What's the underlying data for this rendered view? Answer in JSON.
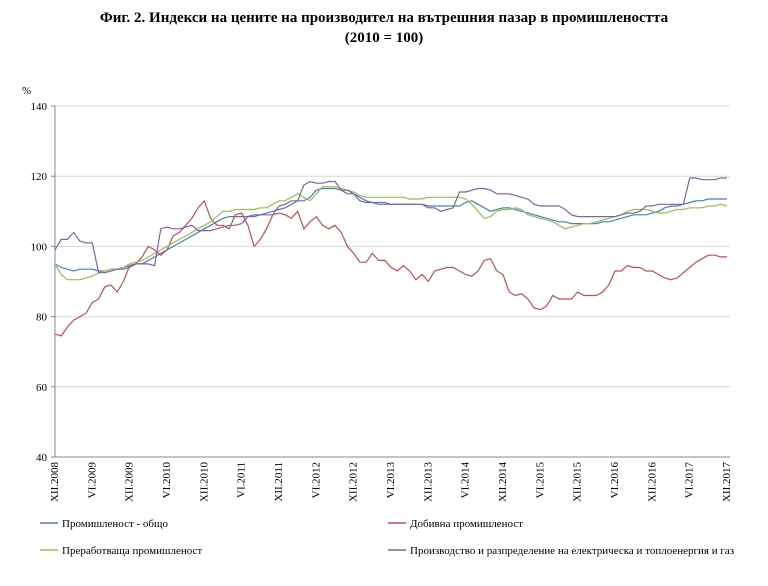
{
  "chart_data": {
    "type": "line",
    "title": "Фиг. 2. Индекси на цените на производител на вътрешния пазар в промишлеността",
    "subtitle": "(2010 = 100)",
    "y_label": "%",
    "categories": [
      "XII.2008",
      null,
      null,
      null,
      null,
      null,
      "VI.2009",
      null,
      null,
      null,
      null,
      null,
      "XII.2009",
      null,
      null,
      null,
      null,
      null,
      "VI.2010",
      null,
      null,
      null,
      null,
      null,
      "XII.2010",
      null,
      null,
      null,
      null,
      null,
      "VI.2011",
      null,
      null,
      null,
      null,
      null,
      "XII.2011",
      null,
      null,
      null,
      null,
      null,
      "VI.2012",
      null,
      null,
      null,
      null,
      null,
      "XII.2012",
      null,
      null,
      null,
      null,
      null,
      "VI.2013",
      null,
      null,
      null,
      null,
      null,
      "XII.2013",
      null,
      null,
      null,
      null,
      null,
      "VI.2014",
      null,
      null,
      null,
      null,
      null,
      "XII.2014",
      null,
      null,
      null,
      null,
      null,
      "VI.2015",
      null,
      null,
      null,
      null,
      null,
      "XII.2015",
      null,
      null,
      null,
      null,
      null,
      "VI.2016",
      null,
      null,
      null,
      null,
      null,
      "XII.2016",
      null,
      null,
      null,
      null,
      null,
      "VI.2017",
      null,
      null,
      null,
      null,
      null,
      "XII.2017"
    ],
    "series": [
      {
        "name": "Промишленост - общо",
        "color": "#4a7ebb",
        "values": [
          95,
          94,
          93.5,
          93,
          93.5,
          93.5,
          93.5,
          93,
          93,
          93.5,
          93.5,
          94,
          94.5,
          95,
          95,
          96,
          97,
          98,
          99,
          100,
          101,
          102,
          103,
          104,
          105,
          106,
          107,
          108,
          108.5,
          108.5,
          108.5,
          108.5,
          109,
          109,
          109.5,
          110,
          110.5,
          111,
          112,
          113,
          113,
          114,
          116,
          116.5,
          116.5,
          116.5,
          116,
          115,
          115,
          114,
          113,
          112.5,
          112.5,
          112.5,
          112,
          112,
          112,
          112,
          112,
          112,
          111.5,
          111.5,
          111.5,
          111.5,
          111.5,
          111.5,
          112.5,
          113,
          112,
          111,
          110,
          110.5,
          111,
          111,
          110.5,
          110,
          109.5,
          109,
          108.5,
          108,
          107.5,
          107,
          107,
          106.5,
          106.5,
          106.5,
          106.5,
          106.5,
          107,
          107,
          107.5,
          108,
          108.5,
          109,
          109,
          109,
          109.5,
          110,
          111,
          111.5,
          111.5,
          112,
          112.5,
          113,
          113,
          113.5,
          113.5,
          113.5,
          113.5
        ]
      },
      {
        "name": "Добивна промишленост",
        "color": "#c0504d",
        "values": [
          75,
          74.5,
          77,
          79,
          80,
          81,
          84,
          85,
          88.5,
          89,
          87,
          90,
          94.5,
          95,
          97,
          100,
          99,
          97.5,
          99,
          103,
          104,
          106,
          108,
          111,
          113,
          108,
          106,
          106,
          105,
          109,
          109.5,
          106,
          100,
          102,
          105,
          109,
          109.5,
          109,
          108,
          110,
          105,
          107,
          108.5,
          106,
          105,
          106,
          104,
          100,
          98,
          95.5,
          95.5,
          98,
          96,
          96,
          94,
          93,
          94.5,
          93,
          90.5,
          92,
          90,
          93,
          93.5,
          94,
          94,
          93,
          92,
          91.5,
          93,
          96,
          96.5,
          93,
          92,
          87,
          86,
          86.5,
          85,
          82.5,
          82,
          83,
          86,
          85,
          85,
          85,
          87,
          86,
          86,
          86,
          87,
          89,
          93,
          93,
          94.5,
          94,
          94,
          93,
          93,
          92,
          91,
          90.5,
          91,
          92.5,
          94,
          95.5,
          96.5,
          97.5,
          97.5,
          97,
          97
        ]
      },
      {
        "name": "Преработваща промишленост",
        "color": "#9bbb59",
        "values": [
          95,
          92,
          90.5,
          90.5,
          90.5,
          91,
          91.5,
          92.5,
          93,
          93.5,
          93.5,
          94,
          95,
          95.5,
          96,
          97,
          98,
          99,
          100,
          101,
          102,
          103,
          104,
          105,
          106,
          107,
          108.5,
          110,
          110,
          110.5,
          110.5,
          110.5,
          110.5,
          111,
          111,
          112,
          113,
          113,
          114,
          115,
          114,
          113,
          115,
          117,
          117,
          117,
          116.5,
          116,
          115.5,
          114.5,
          114,
          114,
          114,
          114,
          114,
          114,
          114,
          113.5,
          113.5,
          113.5,
          114,
          114,
          114,
          114,
          114,
          114,
          113.5,
          112,
          110,
          108,
          108.5,
          110,
          110.5,
          110.5,
          111,
          110.5,
          109,
          108.5,
          108,
          107.5,
          107,
          106,
          105,
          105.5,
          106,
          106.5,
          106.5,
          107,
          107.5,
          108,
          108.5,
          109,
          110,
          110.5,
          110.5,
          110.5,
          110,
          109.5,
          109.5,
          110,
          110.5,
          110.5,
          111,
          111,
          111,
          111.5,
          111.5,
          112,
          111.5
        ]
      },
      {
        "name": "Производство и разпределение на електрическа и топлоенергия  и газ",
        "color": "#8064a2",
        "values": [
          99,
          102,
          102,
          104,
          101.5,
          101,
          101,
          92.5,
          92.5,
          93,
          93.5,
          93.5,
          94,
          95,
          95,
          95,
          94.5,
          105,
          105.5,
          105,
          105,
          105.5,
          106,
          104.5,
          104.5,
          104.5,
          105,
          105.5,
          106,
          106,
          106.5,
          108.5,
          108.5,
          109,
          109,
          109,
          111.5,
          112,
          113,
          113,
          117.5,
          118.5,
          118,
          118,
          118.5,
          118.5,
          116,
          116,
          115,
          113,
          112.5,
          112.5,
          112,
          112,
          112,
          112,
          112,
          112,
          112,
          112,
          111,
          111,
          110,
          110.5,
          111,
          115.5,
          115.5,
          116,
          116.5,
          116.5,
          116,
          115,
          115,
          115,
          114.5,
          114,
          113.5,
          112,
          111.5,
          111.5,
          111.5,
          111.5,
          110.5,
          109,
          108.5,
          108.5,
          108.5,
          108.5,
          108.5,
          108.5,
          108.5,
          109,
          109.5,
          109.5,
          110,
          111.5,
          111.5,
          112,
          112,
          112,
          112,
          112,
          119.5,
          119.5,
          119,
          119,
          119,
          119.5,
          119.5
        ]
      }
    ],
    "ylim": [
      40,
      140
    ],
    "yticks": [
      40,
      60,
      80,
      100,
      120,
      140
    ],
    "grid": true,
    "legend": "bottom"
  }
}
